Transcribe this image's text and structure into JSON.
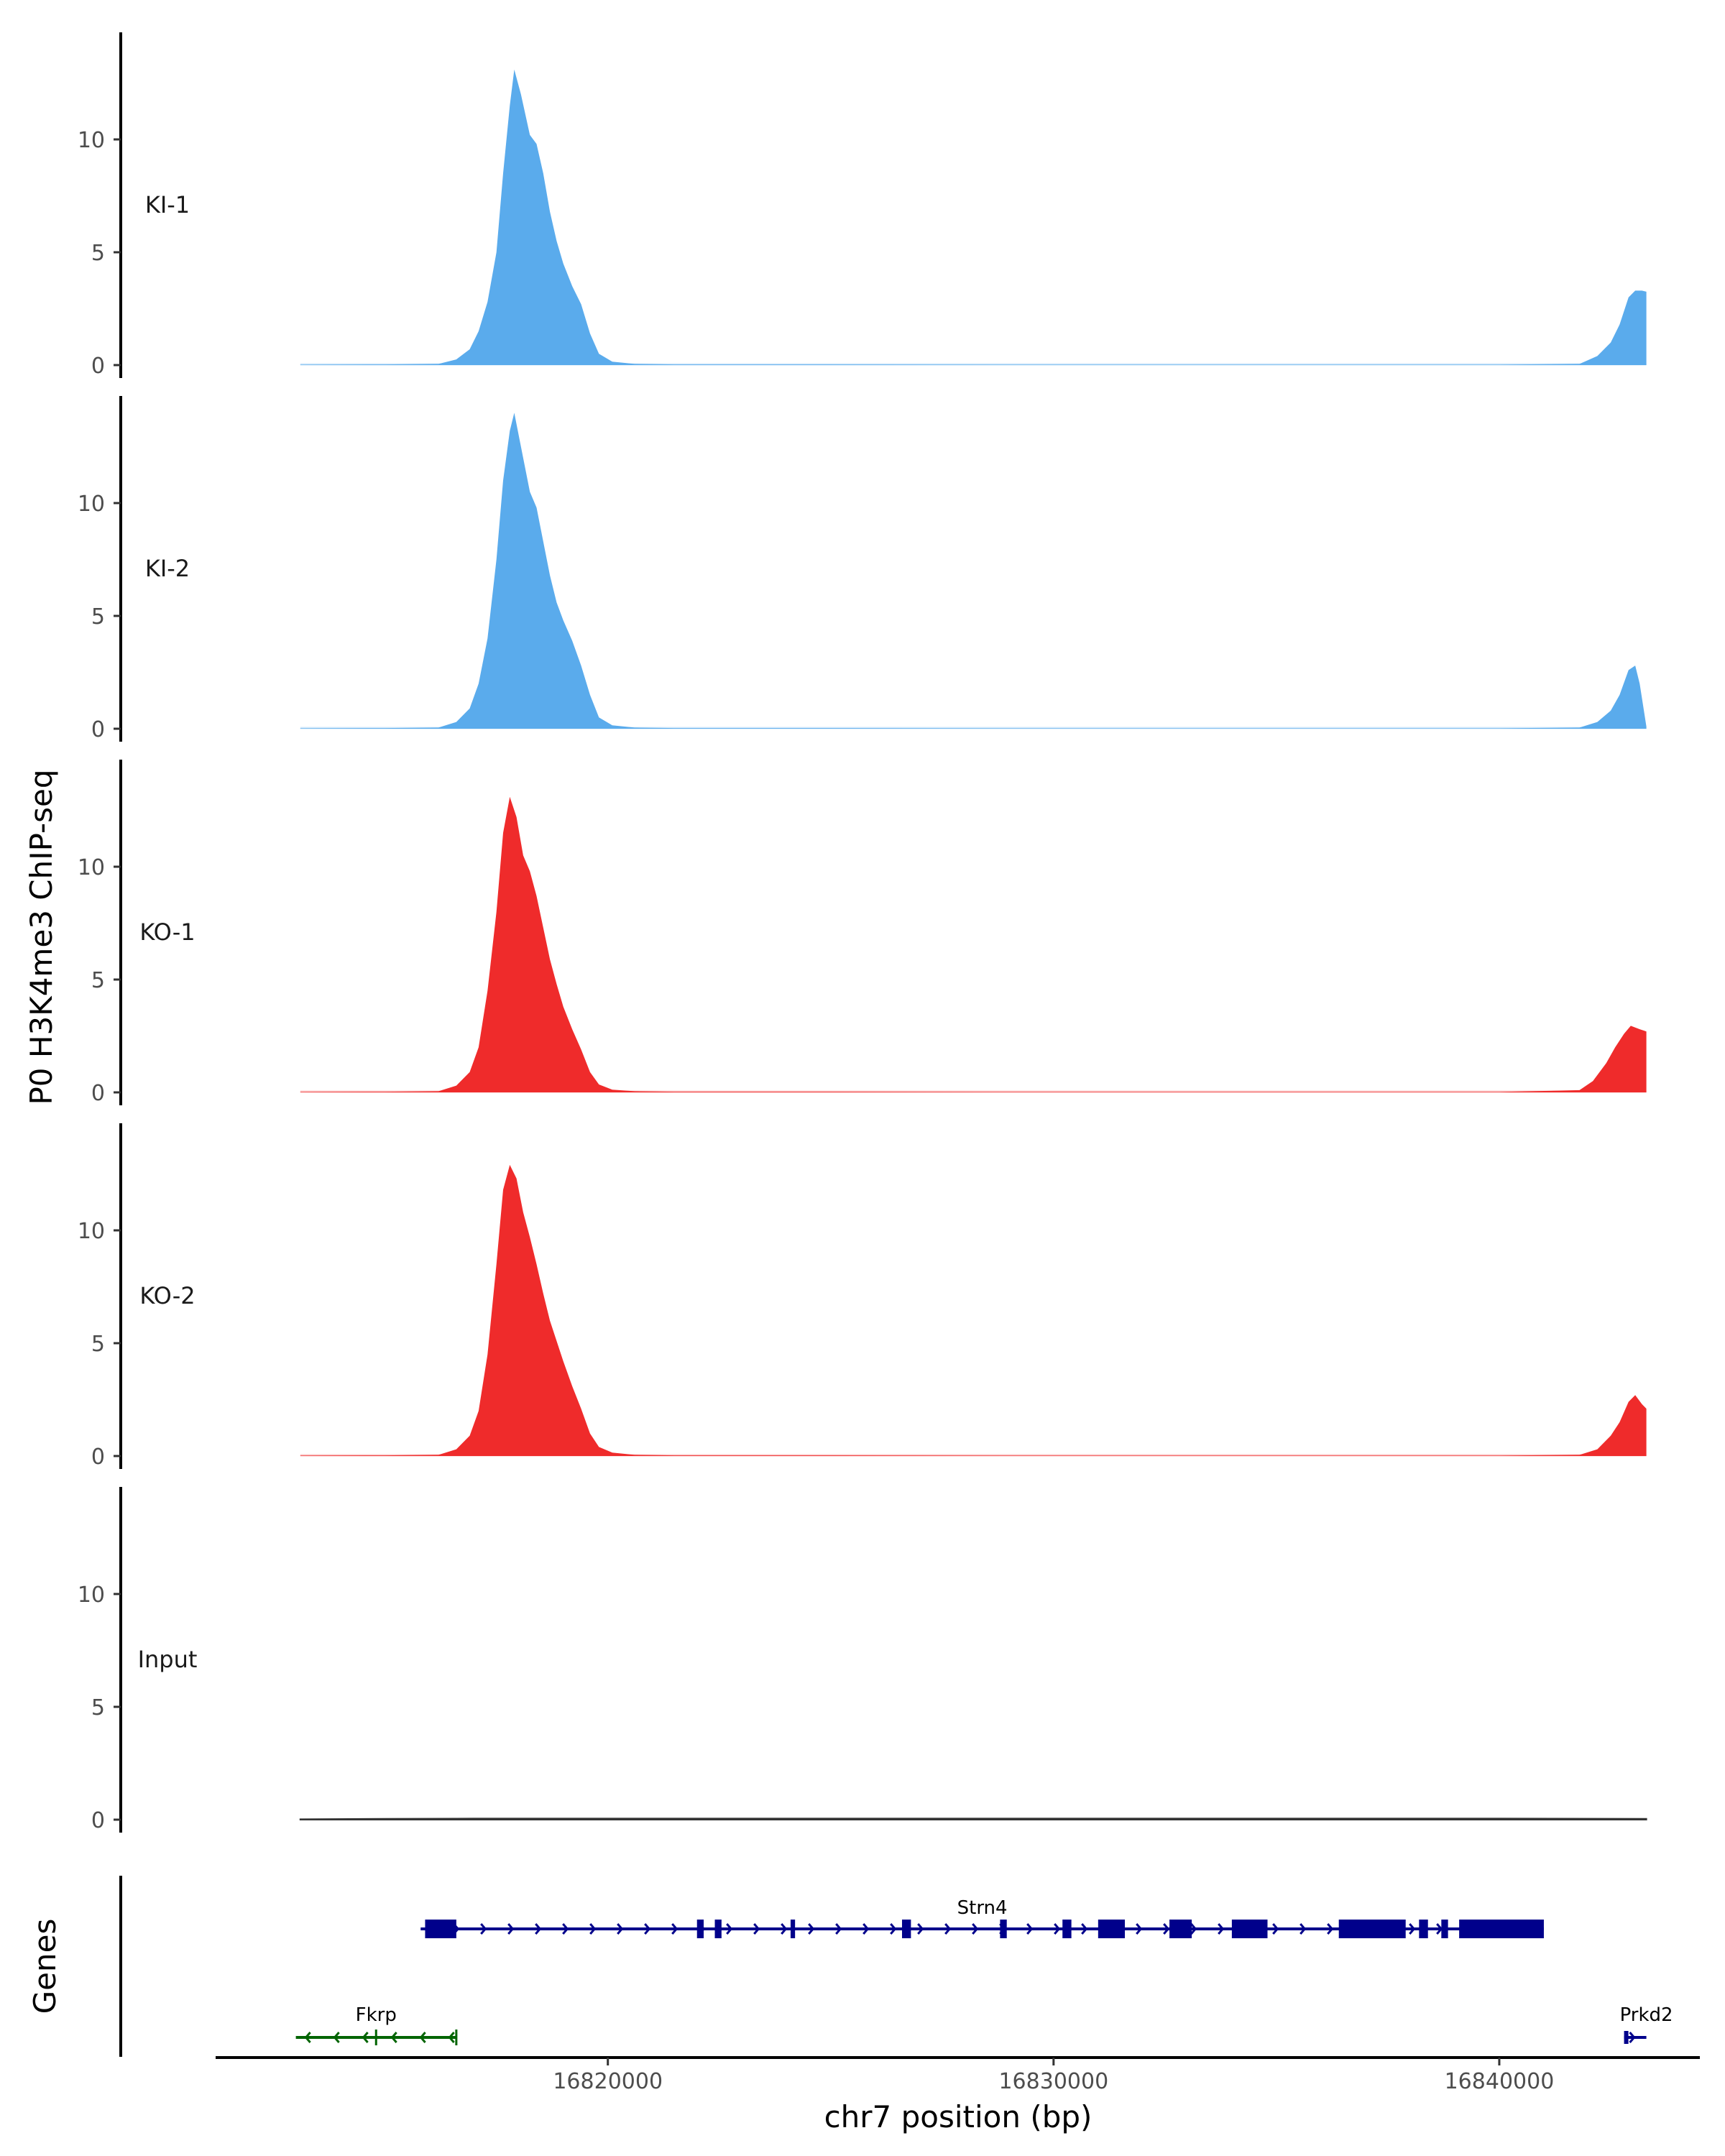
{
  "chart_data": {
    "type": "area",
    "title": "",
    "ylabel": "P0 H3K4me3 ChIP-seq",
    "xlabel": "chr7 position (bp)",
    "genes_label": "Genes",
    "ylim": [
      0,
      15
    ],
    "yticks": [
      0,
      5,
      10
    ],
    "xlim": [
      16811200,
      16844500
    ],
    "xticks": [
      16820000,
      16830000,
      16840000
    ],
    "xtick_labels": [
      "16820000",
      "16830000",
      "16840000"
    ],
    "x_start": 16813100,
    "x_end": 16843300,
    "colors": {
      "KI": "#5aabec",
      "KO": "#ef2b2b",
      "Input": "#333333",
      "gene_strn4": "#00008b",
      "gene_fkrp": "#006400",
      "gene_prkd2": "#00008b"
    },
    "tracks": [
      {
        "name": "KI-1",
        "color": "#5aabec",
        "points": [
          [
            16813100,
            0.02
          ],
          [
            16815000,
            0.03
          ],
          [
            16816200,
            0.05
          ],
          [
            16816600,
            0.25
          ],
          [
            16816900,
            0.7
          ],
          [
            16817100,
            1.5
          ],
          [
            16817300,
            2.8
          ],
          [
            16817500,
            5
          ],
          [
            16817650,
            8.5
          ],
          [
            16817800,
            11.5
          ],
          [
            16817900,
            13.1
          ],
          [
            16818050,
            12
          ],
          [
            16818250,
            10.2
          ],
          [
            16818400,
            9.8
          ],
          [
            16818550,
            8.5
          ],
          [
            16818700,
            6.8
          ],
          [
            16818850,
            5.5
          ],
          [
            16819000,
            4.5
          ],
          [
            16819200,
            3.5
          ],
          [
            16819400,
            2.7
          ],
          [
            16819600,
            1.4
          ],
          [
            16819800,
            0.5
          ],
          [
            16820100,
            0.15
          ],
          [
            16820600,
            0.05
          ],
          [
            16821500,
            0.03
          ],
          [
            16825000,
            0.03
          ],
          [
            16830000,
            0.02
          ],
          [
            16835000,
            0.02
          ],
          [
            16840000,
            0.02
          ],
          [
            16841800,
            0.05
          ],
          [
            16842200,
            0.4
          ],
          [
            16842500,
            1
          ],
          [
            16842700,
            1.8
          ],
          [
            16842900,
            3
          ],
          [
            16843050,
            3.3
          ],
          [
            16843200,
            3.3
          ],
          [
            16843300,
            3.25
          ]
        ]
      },
      {
        "name": "KI-2",
        "color": "#5aabec",
        "points": [
          [
            16813100,
            0.02
          ],
          [
            16815000,
            0.03
          ],
          [
            16816200,
            0.05
          ],
          [
            16816600,
            0.3
          ],
          [
            16816900,
            0.9
          ],
          [
            16817100,
            2
          ],
          [
            16817300,
            4
          ],
          [
            16817500,
            7.5
          ],
          [
            16817650,
            11
          ],
          [
            16817800,
            13.2
          ],
          [
            16817900,
            14
          ],
          [
            16818050,
            12.5
          ],
          [
            16818250,
            10.5
          ],
          [
            16818400,
            9.8
          ],
          [
            16818550,
            8.3
          ],
          [
            16818700,
            6.8
          ],
          [
            16818850,
            5.6
          ],
          [
            16819000,
            4.8
          ],
          [
            16819200,
            3.9
          ],
          [
            16819400,
            2.8
          ],
          [
            16819600,
            1.5
          ],
          [
            16819800,
            0.5
          ],
          [
            16820100,
            0.15
          ],
          [
            16820600,
            0.05
          ],
          [
            16821500,
            0.03
          ],
          [
            16825000,
            0.03
          ],
          [
            16830000,
            0.02
          ],
          [
            16835000,
            0.02
          ],
          [
            16840000,
            0.02
          ],
          [
            16841800,
            0.05
          ],
          [
            16842200,
            0.3
          ],
          [
            16842500,
            0.8
          ],
          [
            16842700,
            1.5
          ],
          [
            16842900,
            2.6
          ],
          [
            16843050,
            2.8
          ],
          [
            16843150,
            2
          ],
          [
            16843300,
            0.1
          ]
        ]
      },
      {
        "name": "KO-1",
        "color": "#ef2b2b",
        "points": [
          [
            16813100,
            0.02
          ],
          [
            16815000,
            0.03
          ],
          [
            16816200,
            0.05
          ],
          [
            16816600,
            0.3
          ],
          [
            16816900,
            0.9
          ],
          [
            16817100,
            2
          ],
          [
            16817300,
            4.5
          ],
          [
            16817500,
            8
          ],
          [
            16817650,
            11.5
          ],
          [
            16817800,
            13.1
          ],
          [
            16817950,
            12.2
          ],
          [
            16818100,
            10.5
          ],
          [
            16818250,
            9.8
          ],
          [
            16818400,
            8.7
          ],
          [
            16818550,
            7.3
          ],
          [
            16818700,
            5.9
          ],
          [
            16818850,
            4.8
          ],
          [
            16819000,
            3.8
          ],
          [
            16819200,
            2.8
          ],
          [
            16819400,
            1.9
          ],
          [
            16819600,
            0.9
          ],
          [
            16819800,
            0.35
          ],
          [
            16820100,
            0.12
          ],
          [
            16820600,
            0.05
          ],
          [
            16821500,
            0.03
          ],
          [
            16825000,
            0.03
          ],
          [
            16830000,
            0.02
          ],
          [
            16835000,
            0.02
          ],
          [
            16840000,
            0.02
          ],
          [
            16841800,
            0.1
          ],
          [
            16842100,
            0.5
          ],
          [
            16842400,
            1.3
          ],
          [
            16842600,
            2
          ],
          [
            16842800,
            2.6
          ],
          [
            16842950,
            2.95
          ],
          [
            16843150,
            2.8
          ],
          [
            16843300,
            2.7
          ]
        ]
      },
      {
        "name": "KO-2",
        "color": "#ef2b2b",
        "points": [
          [
            16813100,
            0.02
          ],
          [
            16815000,
            0.03
          ],
          [
            16816200,
            0.05
          ],
          [
            16816600,
            0.3
          ],
          [
            16816900,
            0.9
          ],
          [
            16817100,
            2
          ],
          [
            16817300,
            4.5
          ],
          [
            16817500,
            8.5
          ],
          [
            16817650,
            11.8
          ],
          [
            16817800,
            12.9
          ],
          [
            16817950,
            12.3
          ],
          [
            16818100,
            10.8
          ],
          [
            16818250,
            9.7
          ],
          [
            16818400,
            8.5
          ],
          [
            16818550,
            7.2
          ],
          [
            16818700,
            6
          ],
          [
            16818850,
            5.1
          ],
          [
            16819000,
            4.2
          ],
          [
            16819200,
            3.1
          ],
          [
            16819400,
            2.1
          ],
          [
            16819600,
            1
          ],
          [
            16819800,
            0.4
          ],
          [
            16820100,
            0.15
          ],
          [
            16820600,
            0.05
          ],
          [
            16821500,
            0.03
          ],
          [
            16825000,
            0.03
          ],
          [
            16830000,
            0.02
          ],
          [
            16835000,
            0.02
          ],
          [
            16840000,
            0.02
          ],
          [
            16841800,
            0.05
          ],
          [
            16842200,
            0.3
          ],
          [
            16842500,
            0.9
          ],
          [
            16842700,
            1.5
          ],
          [
            16842900,
            2.4
          ],
          [
            16843050,
            2.7
          ],
          [
            16843200,
            2.3
          ],
          [
            16843300,
            2.1
          ]
        ]
      },
      {
        "name": "Input",
        "color": "#333333",
        "points": [
          [
            16813100,
            0.02
          ],
          [
            16815000,
            0.04
          ],
          [
            16817000,
            0.05
          ],
          [
            16820000,
            0.05
          ],
          [
            16825000,
            0.05
          ],
          [
            16830000,
            0.05
          ],
          [
            16835000,
            0.05
          ],
          [
            16840000,
            0.05
          ],
          [
            16843300,
            0.04
          ]
        ]
      }
    ],
    "genes": [
      {
        "name": "Strn4",
        "color": "#00008b",
        "strand": "+",
        "row": 1,
        "start": 16815800,
        "end": 16841000,
        "exons": [
          [
            16815900,
            16816600
          ],
          [
            16822000,
            16822150
          ],
          [
            16822400,
            16822550
          ],
          [
            16824100,
            16824200
          ],
          [
            16826600,
            16826800
          ],
          [
            16828800,
            16828950
          ],
          [
            16830200,
            16830400
          ],
          [
            16831000,
            16831600
          ],
          [
            16832600,
            16833100
          ],
          [
            16834000,
            16834800
          ],
          [
            16836400,
            16837900
          ],
          [
            16838200,
            16838400
          ],
          [
            16838700,
            16838850
          ],
          [
            16839100,
            16841000
          ]
        ]
      },
      {
        "name": "Fkrp",
        "color": "#006400",
        "strand": "-",
        "row": 2,
        "start": 16813000,
        "end": 16816600,
        "exons": []
      },
      {
        "name": "Prkd2",
        "color": "#00008b",
        "strand": "+",
        "row": 2,
        "start": 16842800,
        "end": 16843300,
        "exons": [
          [
            16842800,
            16842880
          ]
        ]
      }
    ]
  }
}
